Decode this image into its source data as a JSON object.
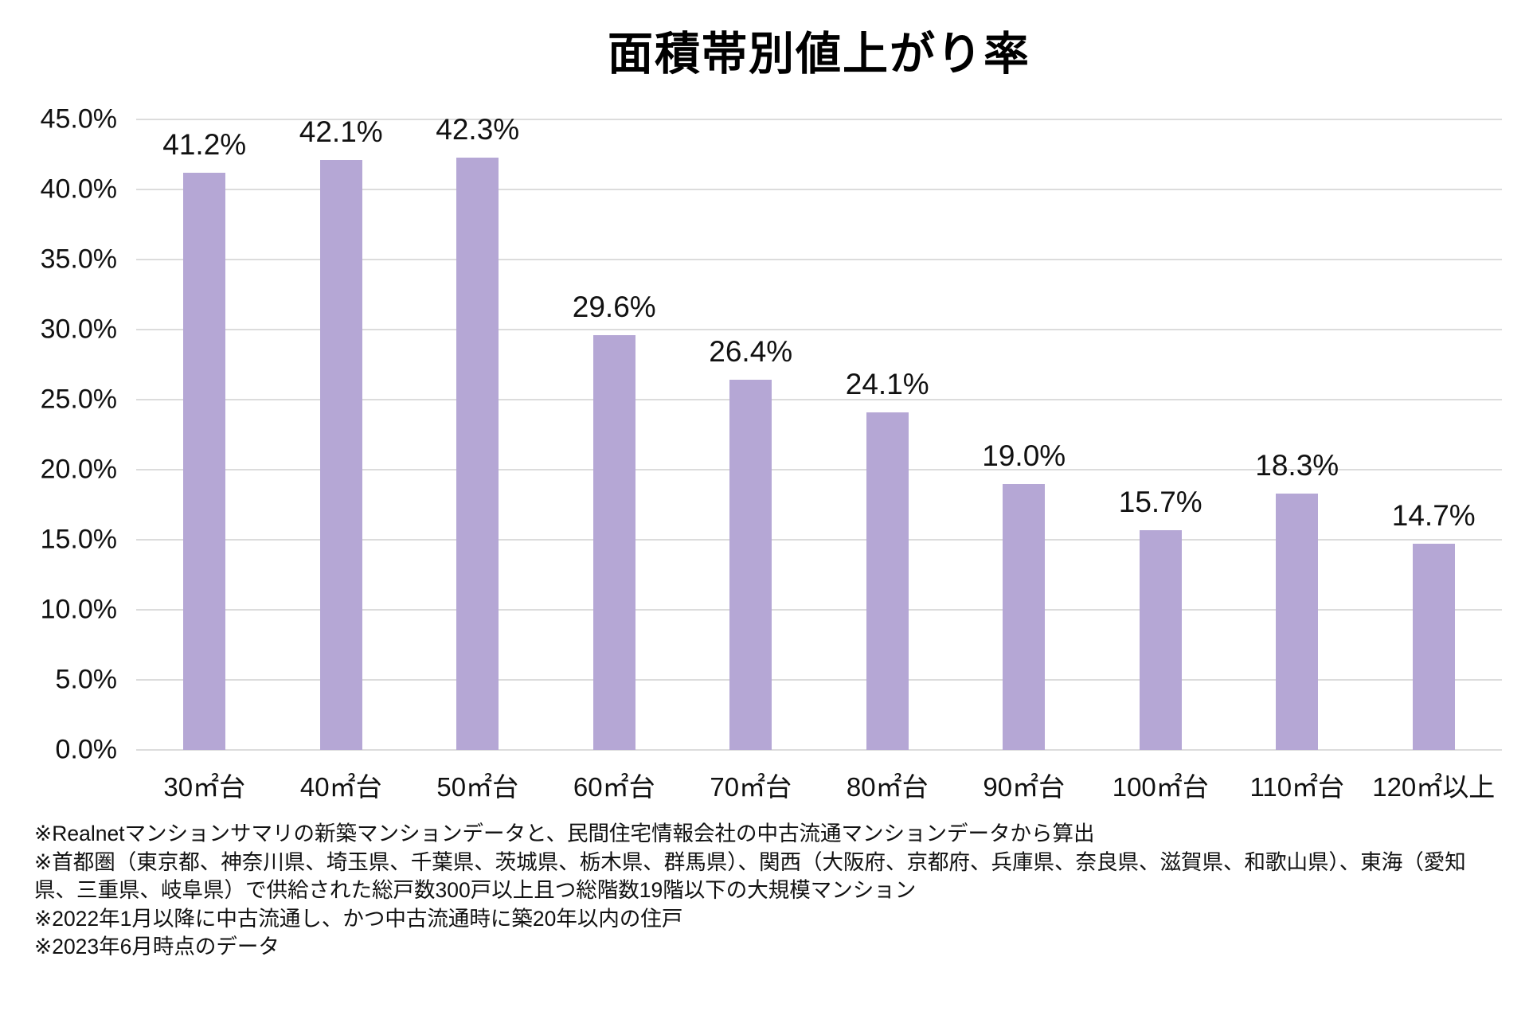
{
  "title": "面積帯別値上がり率",
  "chart_data": {
    "type": "bar",
    "title": "面積帯別値上がり率",
    "categories": [
      "30㎡台",
      "40㎡台",
      "50㎡台",
      "60㎡台",
      "70㎡台",
      "80㎡台",
      "90㎡台",
      "100㎡台",
      "110㎡台",
      "120㎡以上"
    ],
    "values": [
      41.2,
      42.1,
      42.3,
      29.6,
      26.4,
      24.1,
      19.0,
      15.7,
      18.3,
      14.7
    ],
    "value_labels": [
      "41.2%",
      "42.1%",
      "42.3%",
      "29.6%",
      "26.4%",
      "24.1%",
      "19.0%",
      "15.7%",
      "18.3%",
      "14.7%"
    ],
    "xlabel": "",
    "ylabel": "",
    "ylim": [
      0,
      45
    ],
    "ytick_step": 5,
    "ytick_labels": [
      "0.0%",
      "5.0%",
      "10.0%",
      "15.0%",
      "20.0%",
      "25.0%",
      "30.0%",
      "35.0%",
      "40.0%",
      "45.0%"
    ],
    "grid": true,
    "legend": false,
    "bar_color": "#b5a7d5",
    "gridline_color": "#dcdcdc"
  },
  "footnotes": [
    "※Realnetマンションサマリの新築マンションデータと、民間住宅情報会社の中古流通マンションデータから算出",
    "※首都圏（東京都、神奈川県、埼玉県、千葉県、茨城県、栃木県、群馬県）、関西（大阪府、京都府、兵庫県、奈良県、滋賀県、和歌山県）、東海（愛知県、三重県、岐阜県）で供給された総戸数300戸以上且つ総階数19階以下の大規模マンション",
    "※2022年1月以降に中古流通し、かつ中古流通時に築20年以内の住戸",
    "※2023年6月時点のデータ"
  ]
}
